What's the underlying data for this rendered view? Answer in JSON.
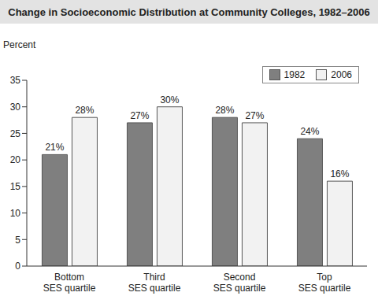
{
  "chart_data": {
    "type": "bar",
    "title": "Change in Socioeconomic Distribution at Community Colleges, 1982–2006",
    "y_label": "Percent",
    "categories": [
      "Bottom SES quartile",
      "Third SES quartile",
      "Second SES quartile",
      "Top SES quartile"
    ],
    "series": [
      {
        "name": "1982",
        "color": "#7f7f7f",
        "values": [
          21,
          27,
          28,
          24
        ],
        "value_labels": [
          "21%",
          "27%",
          "28%",
          "24%"
        ]
      },
      {
        "name": "2006",
        "color": "#f2f2f2",
        "values": [
          28,
          30,
          27,
          16
        ],
        "value_labels": [
          "28%",
          "30%",
          "27%",
          "16%"
        ]
      }
    ],
    "ylim": [
      0,
      35
    ],
    "yticks": [
      0,
      5,
      10,
      15,
      20,
      25,
      30,
      35
    ],
    "grid": false,
    "legend": "upper right",
    "data_labels": true
  }
}
